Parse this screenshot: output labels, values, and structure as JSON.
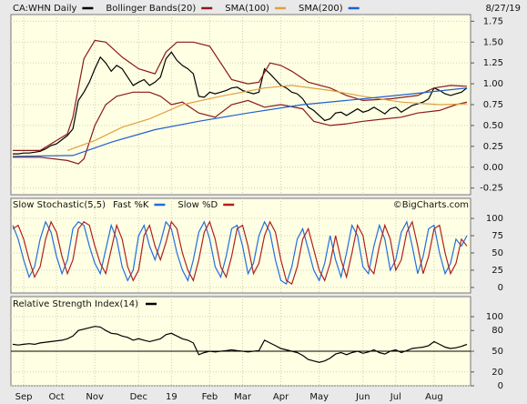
{
  "chart_data": [
    {
      "type": "line",
      "date": "8/27/19",
      "x": [
        0,
        1,
        2,
        3,
        4,
        5,
        6,
        7,
        8,
        9,
        10,
        11,
        12,
        13,
        14,
        15,
        16,
        17,
        18,
        19,
        20,
        21,
        22,
        23,
        24,
        25,
        26,
        27,
        28,
        29,
        30,
        31,
        32,
        33,
        34,
        35,
        36,
        37,
        38,
        39,
        40,
        41,
        42,
        43,
        44,
        45,
        46,
        47,
        48,
        49,
        50,
        51,
        52,
        53,
        54,
        55,
        56,
        57,
        58,
        59,
        60,
        61,
        62,
        63,
        64,
        65,
        66,
        67,
        68,
        69,
        70,
        71,
        72,
        73,
        74,
        75,
        76,
        77,
        78,
        79,
        80,
        81,
        82,
        83
      ],
      "xlim": [
        0,
        83
      ],
      "ylim": [
        -0.33,
        1.83
      ],
      "yticks": [
        1.75,
        {
          "value": 1.5,
          "label": "1.50"
        },
        1.25,
        {
          "value": 1,
          "label": "1.00"
        },
        0.75,
        {
          "value": 0.5,
          "label": "0.50"
        },
        0.25,
        {
          "value": 0,
          "label": "0.00"
        },
        -0.25
      ],
      "grid": true,
      "series": [
        {
          "name": "CA:WHN Daily",
          "color": "#000000",
          "values": [
            0.16,
            0.16,
            0.17,
            0.17,
            0.18,
            0.19,
            0.22,
            0.26,
            0.28,
            0.33,
            0.38,
            0.46,
            0.8,
            0.9,
            1.02,
            1.18,
            1.32,
            1.25,
            1.15,
            1.22,
            1.18,
            1.08,
            0.98,
            1.02,
            1.05,
            0.98,
            1.02,
            1.08,
            1.3,
            1.38,
            1.28,
            1.22,
            1.18,
            1.12,
            0.85,
            0.84,
            0.9,
            0.88,
            0.9,
            0.92,
            0.95,
            0.96,
            0.92,
            0.9,
            0.88,
            0.9,
            1.18,
            1.12,
            1.05,
            0.98,
            0.95,
            0.9,
            0.88,
            0.82,
            0.72,
            0.68,
            0.62,
            0.56,
            0.58,
            0.65,
            0.66,
            0.62,
            0.66,
            0.7,
            0.66,
            0.68,
            0.72,
            0.68,
            0.64,
            0.7,
            0.72,
            0.66,
            0.7,
            0.74,
            0.76,
            0.78,
            0.82,
            0.95,
            0.92,
            0.88,
            0.86,
            0.88,
            0.9,
            0.95
          ]
        },
        {
          "name": "Bollinger Bands(20)",
          "color": "#8b1a1a",
          "x": [
            0,
            5,
            10,
            11,
            12,
            13,
            15,
            17,
            20,
            23,
            26,
            28,
            30,
            33,
            36,
            40,
            43,
            45,
            47,
            49,
            51,
            54,
            58,
            61,
            64,
            69,
            74,
            77,
            80,
            83
          ],
          "values": [
            0.2,
            0.2,
            0.4,
            0.6,
            0.95,
            1.3,
            1.52,
            1.5,
            1.32,
            1.18,
            1.12,
            1.38,
            1.5,
            1.5,
            1.45,
            1.05,
            1.0,
            1.02,
            1.25,
            1.22,
            1.15,
            1.02,
            0.95,
            0.86,
            0.8,
            0.82,
            0.86,
            0.95,
            0.98,
            0.97
          ],
          "lower_x": [
            0,
            5,
            10,
            12,
            13,
            15,
            17,
            19,
            22,
            25,
            27,
            29,
            31,
            34,
            37,
            40,
            43,
            46,
            49,
            53,
            55,
            58,
            61,
            64,
            68,
            71,
            74,
            78,
            81,
            83
          ],
          "lower": [
            0.12,
            0.12,
            0.08,
            0.04,
            0.1,
            0.5,
            0.75,
            0.85,
            0.9,
            0.9,
            0.85,
            0.75,
            0.78,
            0.65,
            0.6,
            0.75,
            0.8,
            0.72,
            0.75,
            0.7,
            0.55,
            0.5,
            0.52,
            0.55,
            0.58,
            0.6,
            0.65,
            0.68,
            0.75,
            0.78
          ]
        },
        {
          "name": "SMA(100)",
          "color": "#e0a040",
          "x": [
            10,
            15,
            20,
            25,
            31,
            38,
            46,
            51,
            58,
            64,
            71,
            78,
            83
          ],
          "values": [
            0.2,
            0.32,
            0.48,
            0.58,
            0.75,
            0.85,
            0.95,
            0.98,
            0.92,
            0.85,
            0.78,
            0.75,
            0.76
          ]
        },
        {
          "name": "SMA(200)",
          "color": "#1f5fd0",
          "x": [
            0,
            11,
            18,
            26,
            34,
            43,
            53,
            64,
            73,
            83
          ],
          "values": [
            0.13,
            0.14,
            0.3,
            0.45,
            0.55,
            0.65,
            0.75,
            0.82,
            0.88,
            0.95
          ]
        }
      ]
    },
    {
      "type": "line",
      "title": "Slow Stochastic(5,5)",
      "watermark": "©BigCharts.com",
      "xlim": [
        0,
        83
      ],
      "ylim": [
        -8,
        129
      ],
      "yticks": [
        0,
        25,
        50,
        75,
        100
      ],
      "grid": true,
      "series": [
        {
          "name": "Fast %K",
          "color": "#1f6fe0",
          "values": [
            90,
            70,
            40,
            15,
            30,
            70,
            95,
            80,
            45,
            20,
            40,
            85,
            95,
            90,
            60,
            35,
            20,
            55,
            90,
            70,
            30,
            10,
            25,
            75,
            90,
            60,
            40,
            65,
            95,
            85,
            50,
            25,
            10,
            40,
            80,
            95,
            70,
            30,
            15,
            45,
            85,
            90,
            60,
            20,
            35,
            75,
            95,
            80,
            40,
            10,
            5,
            30,
            70,
            85,
            55,
            25,
            10,
            35,
            75,
            40,
            15,
            50,
            90,
            75,
            30,
            20,
            60,
            90,
            70,
            25,
            40,
            80,
            95,
            60,
            20,
            45,
            85,
            90,
            50,
            20,
            35,
            70,
            60,
            75
          ]
        },
        {
          "name": "Slow %D",
          "color": "#b02020",
          "values": [
            85,
            90,
            70,
            40,
            15,
            30,
            70,
            95,
            80,
            45,
            20,
            40,
            85,
            95,
            90,
            60,
            35,
            20,
            55,
            90,
            70,
            30,
            10,
            25,
            75,
            90,
            60,
            40,
            65,
            95,
            85,
            50,
            25,
            10,
            40,
            80,
            95,
            70,
            30,
            15,
            45,
            85,
            90,
            60,
            20,
            35,
            75,
            95,
            80,
            40,
            10,
            5,
            30,
            70,
            85,
            55,
            25,
            10,
            35,
            75,
            40,
            15,
            50,
            90,
            75,
            30,
            20,
            60,
            90,
            70,
            25,
            40,
            80,
            95,
            60,
            20,
            45,
            85,
            90,
            50,
            20,
            35,
            70,
            60
          ]
        }
      ]
    },
    {
      "type": "line",
      "title": "Relative Strength Index(14)",
      "xlim": [
        0,
        83
      ],
      "ylim": [
        0,
        129
      ],
      "yticks": [
        0,
        20,
        50,
        80,
        100
      ],
      "grid": true,
      "xticks": [
        {
          "value": 2,
          "label": "Sep"
        },
        {
          "value": 8,
          "label": "Oct"
        },
        {
          "value": 15,
          "label": "Nov"
        },
        {
          "value": 23,
          "label": "Dec"
        },
        {
          "value": 29,
          "label": "19"
        },
        {
          "value": 36,
          "label": "Feb"
        },
        {
          "value": 42,
          "label": "Mar"
        },
        {
          "value": 49,
          "label": "Apr"
        },
        {
          "value": 56,
          "label": "May"
        },
        {
          "value": 64,
          "label": "Jun"
        },
        {
          "value": 70,
          "label": "Jul"
        },
        {
          "value": 77,
          "label": "Aug"
        }
      ],
      "series": [
        {
          "color": "#000000",
          "values": [
            60,
            59,
            60,
            61,
            60,
            62,
            63,
            64,
            65,
            66,
            68,
            72,
            80,
            82,
            84,
            86,
            85,
            80,
            76,
            75,
            72,
            70,
            66,
            68,
            66,
            64,
            66,
            68,
            74,
            76,
            72,
            68,
            66,
            62,
            45,
            48,
            50,
            49,
            50,
            51,
            52,
            51,
            50,
            49,
            50,
            51,
            66,
            62,
            58,
            54,
            52,
            50,
            48,
            44,
            38,
            36,
            34,
            36,
            40,
            46,
            48,
            45,
            48,
            50,
            47,
            49,
            52,
            48,
            46,
            50,
            52,
            48,
            51,
            54,
            55,
            56,
            58,
            64,
            60,
            56,
            54,
            55,
            57,
            60
          ]
        }
      ]
    }
  ]
}
